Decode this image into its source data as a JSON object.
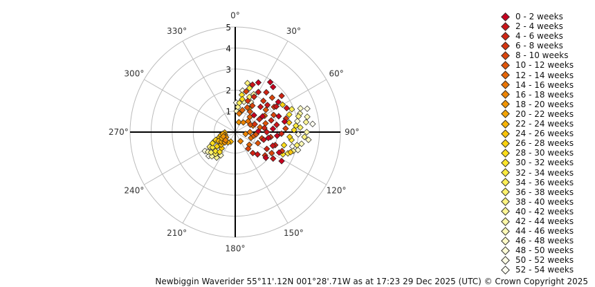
{
  "chart_data": {
    "type": "scatter",
    "projection": "polar",
    "angle_axis": {
      "direction": "clockwise",
      "zero_at": "top",
      "tick_labels": [
        "0°",
        "30°",
        "60°",
        "90°",
        "120°",
        "150°",
        "180°",
        "210°",
        "240°",
        "270°",
        "300°",
        "330°"
      ]
    },
    "radius_axis": {
      "range": [
        0,
        5
      ],
      "tick_labels": [
        "1",
        "2",
        "3",
        "4",
        "5"
      ]
    },
    "grid": true,
    "legend_position": "right",
    "legend": [
      "0 - 2 weeks",
      "2 - 4 weeks",
      "4 - 6 weeks",
      "6 - 8 weeks",
      "8 - 10 weeks",
      "10 - 12 weeks",
      "12 - 14 weeks",
      "14 - 16 weeks",
      "16 - 18 weeks",
      "18 - 20 weeks",
      "20 - 22 weeks",
      "22 - 24 weeks",
      "24 - 26 weeks",
      "26 - 28 weeks",
      "28 - 30 weeks",
      "30 - 32 weeks",
      "32 - 34 weeks",
      "34 - 36 weeks",
      "36 - 38 weeks",
      "38 - 40 weeks",
      "40 - 42 weeks",
      "42 - 44 weeks",
      "44 - 46 weeks",
      "46 - 48 weeks",
      "48 - 50 weeks",
      "50 - 52 weeks",
      "52 - 54 weeks"
    ],
    "legend_colors": [
      "#c8001e",
      "#cc1419",
      "#d02414",
      "#d5340f",
      "#da440c",
      "#df5409",
      "#e46407",
      "#e87405",
      "#ec8404",
      "#f09403",
      "#f3a404",
      "#f6b406",
      "#f9c40a",
      "#fbd20f",
      "#fcdd1a",
      "#fde52a",
      "#fdea3e",
      "#fdee55",
      "#fdf16b",
      "#fdf380",
      "#fdf594",
      "#fdf7a6",
      "#fdf9b6",
      "#fefac6",
      "#fefcd5",
      "#fefde4",
      "#fffff2"
    ],
    "series": [
      {
        "name": "0 - 2 weeks",
        "points": [
          [
            40,
            2.8
          ],
          [
            55,
            2.5
          ],
          [
            70,
            2.2
          ],
          [
            85,
            1.8
          ],
          [
            100,
            1.6
          ],
          [
            115,
            2.3
          ],
          [
            130,
            1.9
          ],
          [
            25,
            2.6
          ],
          [
            60,
            1.5
          ],
          [
            95,
            2.0
          ],
          [
            35,
            2.9
          ],
          [
            78,
            2.4
          ],
          [
            122,
            2.6
          ],
          [
            48,
            1.2
          ],
          [
            88,
            1.1
          ]
        ]
      },
      {
        "name": "2 - 4 weeks",
        "points": [
          [
            30,
            2.2
          ],
          [
            50,
            2.0
          ],
          [
            65,
            2.7
          ],
          [
            80,
            2.0
          ],
          [
            105,
            1.4
          ],
          [
            125,
            2.2
          ],
          [
            45,
            1.7
          ],
          [
            90,
            1.5
          ],
          [
            110,
            1.9
          ],
          [
            20,
            2.4
          ],
          [
            58,
            2.3
          ],
          [
            135,
            1.5
          ]
        ]
      },
      {
        "name": "4 - 6 weeks",
        "points": [
          [
            38,
            2.4
          ],
          [
            52,
            2.8
          ],
          [
            72,
            1.8
          ],
          [
            92,
            2.2
          ],
          [
            108,
            2.0
          ],
          [
            118,
            1.7
          ],
          [
            28,
            1.9
          ],
          [
            62,
            1.3
          ],
          [
            82,
            1.4
          ],
          [
            140,
            1.3
          ]
        ]
      },
      {
        "name": "6 - 8 weeks",
        "points": [
          [
            42,
            2.0
          ],
          [
            57,
            2.2
          ],
          [
            75,
            2.5
          ],
          [
            98,
            1.7
          ],
          [
            112,
            2.4
          ],
          [
            22,
            1.6
          ],
          [
            68,
            1.0
          ],
          [
            128,
            1.8
          ]
        ]
      },
      {
        "name": "8 - 10 weeks",
        "points": [
          [
            33,
            1.5
          ],
          [
            47,
            2.4
          ],
          [
            66,
            2.0
          ],
          [
            86,
            2.4
          ],
          [
            103,
            1.3
          ],
          [
            120,
            2.0
          ],
          [
            15,
            2.0
          ],
          [
            142,
            1.0
          ]
        ]
      },
      {
        "name": "10 - 12 weeks",
        "points": [
          [
            36,
            1.2
          ],
          [
            54,
            1.8
          ],
          [
            74,
            1.5
          ],
          [
            96,
            1.0
          ],
          [
            116,
            1.2
          ],
          [
            26,
            1.3
          ],
          [
            64,
            0.8
          ]
        ]
      },
      {
        "name": "12 - 14 weeks",
        "points": [
          [
            44,
            1.0
          ],
          [
            61,
            1.6
          ],
          [
            79,
            1.2
          ],
          [
            101,
            0.9
          ],
          [
            18,
            1.1
          ],
          [
            132,
            0.9
          ]
        ]
      },
      {
        "name": "14 - 16 weeks",
        "points": [
          [
            50,
            0.8
          ],
          [
            70,
            0.9
          ],
          [
            90,
            0.7
          ],
          [
            110,
            0.8
          ],
          [
            12,
            0.9
          ]
        ]
      },
      {
        "name": "16 - 18 weeks",
        "points": [
          [
            40,
            0.6
          ],
          [
            100,
            0.5
          ],
          [
            150,
            0.5
          ],
          [
            230,
            0.6
          ]
        ]
      },
      {
        "name": "18 - 20 weeks",
        "points": [
          [
            225,
            0.7
          ],
          [
            240,
            0.5
          ],
          [
            250,
            0.6
          ],
          [
            20,
            0.5
          ]
        ]
      },
      {
        "name": "20 - 22 weeks",
        "points": [
          [
            235,
            0.8
          ],
          [
            245,
            0.7
          ],
          [
            255,
            0.5
          ],
          [
            262,
            0.6
          ],
          [
            215,
            0.6
          ]
        ]
      },
      {
        "name": "22 - 24 weeks",
        "points": [
          [
            228,
            0.9
          ],
          [
            242,
            0.9
          ],
          [
            258,
            0.7
          ],
          [
            268,
            0.5
          ],
          [
            205,
            0.5
          ]
        ]
      },
      {
        "name": "24 - 26 weeks",
        "points": [
          [
            220,
            1.0
          ],
          [
            238,
            0.8
          ],
          [
            252,
            0.8
          ],
          [
            15,
            1.0
          ],
          [
            80,
            2.6
          ],
          [
            110,
            2.8
          ]
        ]
      },
      {
        "name": "26 - 28 weeks",
        "points": [
          [
            232,
            1.1
          ],
          [
            248,
            1.0
          ],
          [
            30,
            1.3
          ],
          [
            95,
            2.6
          ],
          [
            60,
            2.6
          ]
        ]
      },
      {
        "name": "28 - 30 weeks",
        "points": [
          [
            218,
            1.2
          ],
          [
            244,
            1.2
          ],
          [
            12,
            1.6
          ],
          [
            88,
            2.8
          ],
          [
            105,
            2.4
          ]
        ]
      },
      {
        "name": "30 - 32 weeks",
        "points": [
          [
            226,
            1.3
          ],
          [
            10,
            1.8
          ],
          [
            72,
            2.7
          ],
          [
            115,
            2.5
          ]
        ]
      },
      {
        "name": "32 - 34 weeks",
        "points": [
          [
            236,
            1.3
          ],
          [
            18,
            2.2
          ],
          [
            84,
            2.9
          ],
          [
            98,
            2.7
          ]
        ]
      },
      {
        "name": "34 - 36 weeks",
        "points": [
          [
            222,
            1.4
          ],
          [
            8,
            1.4
          ],
          [
            68,
            2.9
          ],
          [
            112,
            2.7
          ]
        ]
      },
      {
        "name": "36 - 38 weeks",
        "points": [
          [
            230,
            1.5
          ],
          [
            22,
            1.8
          ],
          [
            86,
            3.1
          ],
          [
            102,
            3.0
          ]
        ]
      },
      {
        "name": "38 - 40 weeks",
        "points": [
          [
            240,
            1.4
          ],
          [
            14,
            2.4
          ],
          [
            76,
            3.1
          ],
          [
            94,
            3.3
          ]
        ]
      },
      {
        "name": "40 - 42 weeks",
        "points": [
          [
            216,
            1.5
          ],
          [
            6,
            1.2
          ],
          [
            82,
            3.4
          ],
          [
            108,
            2.9
          ]
        ]
      },
      {
        "name": "42 - 44 weeks",
        "points": [
          [
            224,
            1.6
          ],
          [
            26,
            2.0
          ],
          [
            74,
            3.2
          ],
          [
            90,
            3.4
          ]
        ]
      },
      {
        "name": "44 - 46 weeks",
        "points": [
          [
            234,
            1.6
          ],
          [
            16,
            1.5
          ],
          [
            78,
            3.5
          ],
          [
            100,
            3.2
          ]
        ]
      },
      {
        "name": "46 - 48 weeks",
        "points": [
          [
            212,
            1.3
          ],
          [
            4,
            1.0
          ],
          [
            70,
            3.3
          ],
          [
            96,
            3.5
          ]
        ]
      },
      {
        "name": "48 - 50 weeks",
        "points": [
          [
            246,
            1.1
          ],
          [
            28,
            1.6
          ],
          [
            80,
            3.0
          ],
          [
            106,
            3.1
          ]
        ]
      },
      {
        "name": "50 - 52 weeks",
        "points": [
          [
            238,
            1.7
          ],
          [
            10,
            2.0
          ],
          [
            72,
            3.6
          ],
          [
            92,
            3.0
          ]
        ]
      },
      {
        "name": "52 - 54 weeks",
        "points": [
          [
            228,
            1.7
          ],
          [
            2,
            1.4
          ],
          [
            84,
            3.7
          ],
          [
            104,
            2.8
          ]
        ]
      }
    ]
  },
  "footer": {
    "text": "Newbiggin Waverider 55°11'.12N 001°28'.71W as at 17:23 29 Dec 2025 (UTC) © Crown Copyright 2025"
  }
}
